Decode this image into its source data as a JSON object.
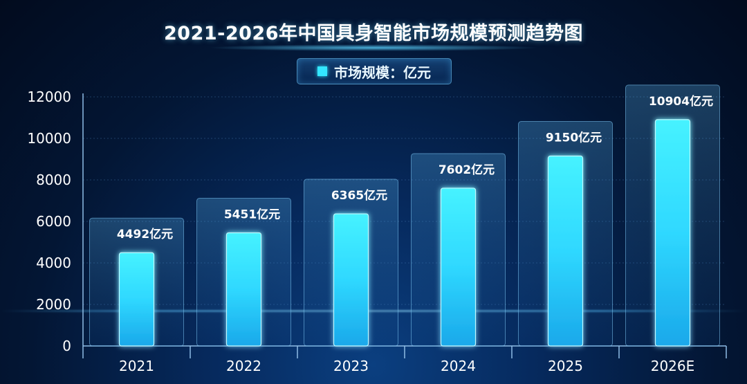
{
  "title": "2021-2026年中国具身智能市场规模预测趋势图",
  "legend": {
    "label": "市场规模：亿元",
    "color": "#33e6ff"
  },
  "chart_data": {
    "type": "bar",
    "title": "2021-2026年中国具身智能市场规模预测趋势图",
    "categories": [
      "2021",
      "2022",
      "2023",
      "2024",
      "2025",
      "2026E"
    ],
    "series": [
      {
        "name": "市场规模：亿元",
        "values": [
          4492,
          5451,
          6365,
          7602,
          9150,
          10904
        ]
      }
    ],
    "data_labels": [
      "4492亿元",
      "5451亿元",
      "6365亿元",
      "7602亿元",
      "9150亿元",
      "10904亿元"
    ],
    "ylim": [
      0,
      12000
    ],
    "yticks": [
      0,
      2000,
      4000,
      6000,
      8000,
      10000,
      12000
    ],
    "grid": true,
    "legend_position": "top-center",
    "bar_color": "#33e6ff"
  }
}
